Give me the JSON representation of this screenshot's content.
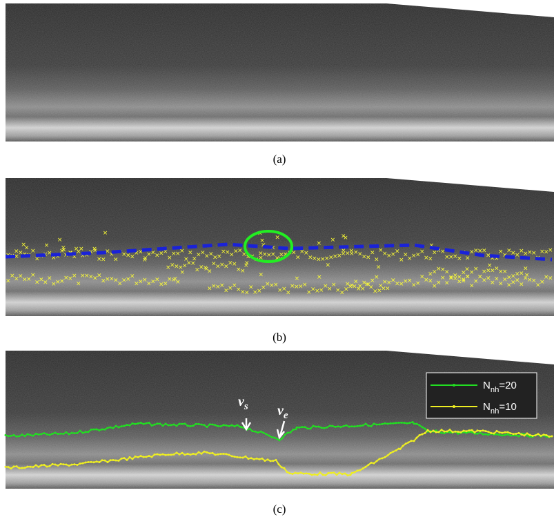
{
  "panels": [
    {
      "caption": "(a)"
    },
    {
      "caption": "(b)"
    },
    {
      "caption": "(c)"
    }
  ],
  "legend": [
    {
      "main": "N",
      "sub": "nh",
      "rest": "=20"
    },
    {
      "main": "N",
      "sub": "nh",
      "rest": "=10"
    }
  ],
  "annotations": [
    {
      "main": "v",
      "sub": "s"
    },
    {
      "main": "v",
      "sub": "e"
    }
  ]
}
